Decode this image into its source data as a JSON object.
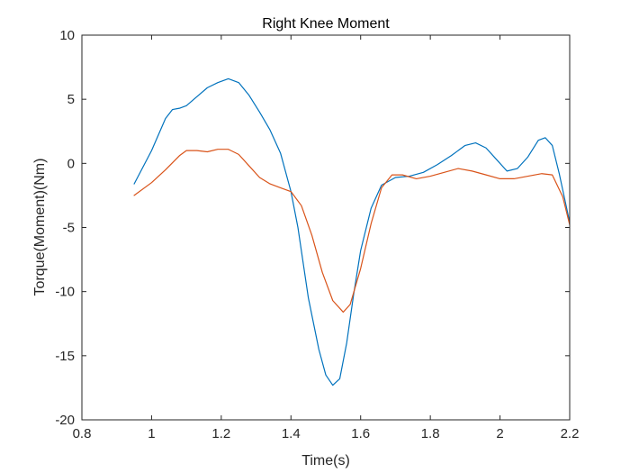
{
  "chart_data": {
    "type": "line",
    "title": "Right Knee Moment",
    "xlabel": "Time(s)",
    "ylabel": "Torque(Moment)(Nm)",
    "xlim": [
      0.8,
      2.2
    ],
    "ylim": [
      -20,
      10
    ],
    "xticks": [
      0.8,
      1,
      1.2,
      1.4,
      1.6,
      1.8,
      2,
      2.2
    ],
    "xtick_labels": [
      "0.8",
      "1",
      "1.2",
      "1.4",
      "1.6",
      "1.8",
      "2",
      "2.2"
    ],
    "yticks": [
      -20,
      -15,
      -10,
      -5,
      0,
      5,
      10
    ],
    "ytick_labels": [
      "-20",
      "-15",
      "-10",
      "-5",
      "0",
      "5",
      "10"
    ],
    "grid": false,
    "series": [
      {
        "color": "#0072BD",
        "x": [
          0.95,
          1.0,
          1.04,
          1.06,
          1.08,
          1.1,
          1.13,
          1.16,
          1.19,
          1.22,
          1.25,
          1.28,
          1.31,
          1.34,
          1.37,
          1.4,
          1.42,
          1.45,
          1.48,
          1.5,
          1.52,
          1.54,
          1.56,
          1.58,
          1.6,
          1.63,
          1.66,
          1.7,
          1.74,
          1.78,
          1.82,
          1.86,
          1.9,
          1.93,
          1.96,
          1.99,
          2.02,
          2.05,
          2.08,
          2.11,
          2.13,
          2.15,
          2.17,
          2.2
        ],
        "y": [
          -1.6,
          1.0,
          3.5,
          4.2,
          4.3,
          4.5,
          5.2,
          5.9,
          6.3,
          6.6,
          6.3,
          5.3,
          4.0,
          2.6,
          0.8,
          -2.2,
          -5.0,
          -10.5,
          -14.5,
          -16.5,
          -17.3,
          -16.8,
          -14.0,
          -10.2,
          -6.8,
          -3.5,
          -1.7,
          -1.1,
          -1.0,
          -0.7,
          -0.1,
          0.6,
          1.4,
          1.6,
          1.2,
          0.3,
          -0.6,
          -0.4,
          0.5,
          1.8,
          2.0,
          1.4,
          -0.8,
          -4.6
        ]
      },
      {
        "color": "#D95319",
        "x": [
          0.95,
          1.0,
          1.04,
          1.08,
          1.1,
          1.13,
          1.16,
          1.19,
          1.22,
          1.25,
          1.28,
          1.31,
          1.34,
          1.37,
          1.4,
          1.43,
          1.46,
          1.49,
          1.52,
          1.55,
          1.57,
          1.6,
          1.63,
          1.66,
          1.69,
          1.72,
          1.76,
          1.8,
          1.84,
          1.88,
          1.92,
          1.96,
          2.0,
          2.04,
          2.08,
          2.12,
          2.15,
          2.18,
          2.2
        ],
        "y": [
          -2.5,
          -1.5,
          -0.5,
          0.6,
          1.0,
          1.0,
          0.9,
          1.1,
          1.1,
          0.7,
          -0.2,
          -1.1,
          -1.6,
          -1.9,
          -2.2,
          -3.3,
          -5.6,
          -8.5,
          -10.7,
          -11.6,
          -11.0,
          -8.2,
          -4.7,
          -1.9,
          -0.9,
          -0.9,
          -1.2,
          -1.0,
          -0.7,
          -0.4,
          -0.6,
          -0.9,
          -1.2,
          -1.2,
          -1.0,
          -0.8,
          -0.9,
          -2.6,
          -4.8
        ]
      }
    ]
  }
}
